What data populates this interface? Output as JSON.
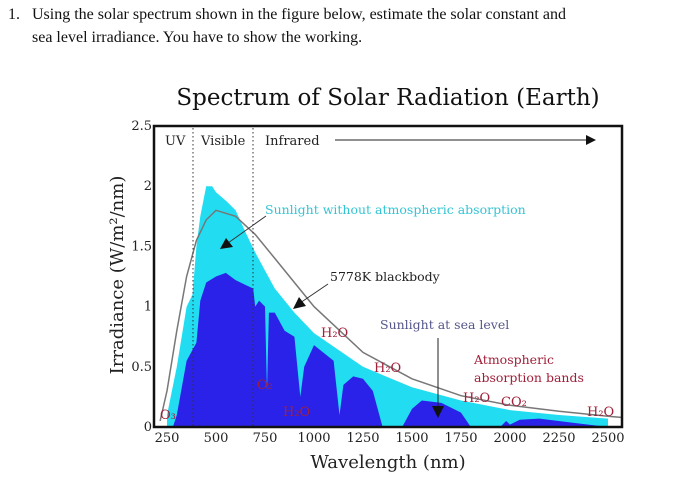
{
  "question": {
    "number": "1.",
    "line1": "Using the solar spectrum shown in the figure below, estimate the solar constant and",
    "line2": "sea level irradiance. You have to show the working."
  },
  "chart_data": {
    "type": "area",
    "title": "Spectrum of Solar Radiation (Earth)",
    "xlabel": "Wavelength (nm)",
    "ylabel": "Irradiance (W/m²/nm)",
    "xlim": [
      185,
      2570
    ],
    "ylim": [
      0,
      2.5
    ],
    "xticks": [
      "250",
      "500",
      "750",
      "1000",
      "1250",
      "1500",
      "1750",
      "2000",
      "2250",
      "2500"
    ],
    "yticks": [
      "0",
      "0.5",
      "1",
      "1.5",
      "2",
      "2.5"
    ],
    "grid": false,
    "colors": {
      "top_of_atmosphere": "#22ddf2",
      "sea_level": "#2a22e8",
      "blackbody": "#777777",
      "bands": "#a0203a",
      "sea_label": "#55558a"
    },
    "regions": [
      {
        "label": "UV"
      },
      {
        "label": "Visible",
        "start_nm": 380
      },
      {
        "label": "Infrared",
        "start_nm": 700
      }
    ],
    "series": [
      {
        "name": "Sunlight without atmospheric absorption",
        "x": [
          250,
          300,
          350,
          380,
          400,
          420,
          450,
          480,
          500,
          550,
          600,
          650,
          700,
          750,
          800,
          900,
          1000,
          1250,
          1500,
          1750,
          2000,
          2250,
          2500
        ],
        "y": [
          0.1,
          0.5,
          1.0,
          1.1,
          1.5,
          1.75,
          2.0,
          2.0,
          1.95,
          1.88,
          1.8,
          1.62,
          1.45,
          1.3,
          1.15,
          0.95,
          0.78,
          0.5,
          0.33,
          0.22,
          0.14,
          0.1,
          0.07
        ]
      },
      {
        "name": "Sunlight at sea level",
        "x": [
          280,
          300,
          350,
          400,
          420,
          450,
          500,
          550,
          600,
          650,
          690,
          700,
          720,
          750,
          760,
          770,
          800,
          850,
          900,
          930,
          950,
          1000,
          1100,
          1130,
          1150,
          1200,
          1250,
          1300,
          1350,
          1450,
          1500,
          1550,
          1650,
          1750,
          1800,
          1950,
          1980,
          2000,
          2050,
          2150,
          2300,
          2400,
          2500
        ],
        "y": [
          0,
          0.1,
          0.55,
          0.7,
          1.05,
          1.2,
          1.25,
          1.28,
          1.22,
          1.18,
          1.15,
          1.0,
          1.05,
          1.0,
          0.3,
          0.95,
          0.95,
          0.8,
          0.75,
          0.25,
          0.5,
          0.68,
          0.55,
          0.1,
          0.35,
          0.42,
          0.4,
          0.3,
          0,
          0,
          0.15,
          0.22,
          0.2,
          0.12,
          0,
          0,
          0.05,
          0.02,
          0.06,
          0.07,
          0.04,
          0.02,
          0
        ]
      },
      {
        "name": "5778K blackbody",
        "x": [
          215,
          250,
          300,
          350,
          400,
          450,
          500,
          600,
          700,
          800,
          900,
          1000,
          1250,
          1500,
          1750,
          2000,
          2250,
          2500,
          2570
        ],
        "y": [
          0.05,
          0.3,
          0.8,
          1.25,
          1.55,
          1.72,
          1.8,
          1.75,
          1.6,
          1.4,
          1.2,
          1.0,
          0.62,
          0.4,
          0.26,
          0.18,
          0.13,
          0.09,
          0.08
        ]
      }
    ],
    "annotations": {
      "without_absorption": "Sunlight without atmospheric absorption",
      "blackbody": "5778K blackbody",
      "sea_level": "Sunlight at sea level",
      "bands_line1": "Atmospheric",
      "bands_line2": "absorption bands",
      "molecules": [
        "O₃",
        "O₂",
        "H₂O",
        "H₂O",
        "H₂O",
        "H₂O",
        "CO₂",
        "H₂O"
      ]
    }
  }
}
